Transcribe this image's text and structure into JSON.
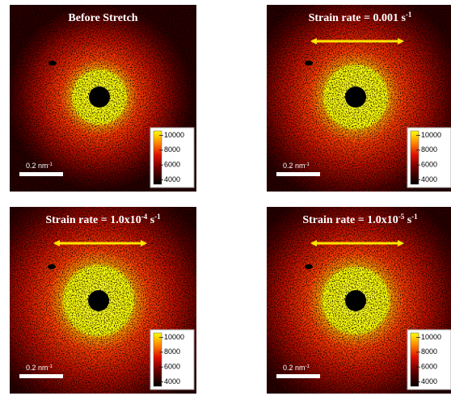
{
  "panels": [
    {
      "title": [
        "Before Stretch"
      ],
      "arrow": false
    },
    {
      "title": [
        "Strain rate = 0.001 s",
        "-1"
      ],
      "arrow": true
    },
    {
      "title": [
        "Strain rate = 1.0x10",
        "-4",
        " s",
        "-1"
      ],
      "arrow": true
    },
    {
      "title": [
        "Strain rate = 1.0x10",
        "-5",
        " s",
        "-1"
      ],
      "arrow": true
    }
  ],
  "scale_bar": [
    "0.2 nm",
    "-1"
  ],
  "colorbar": {
    "clim": [
      3400,
      10600
    ],
    "ticks": [
      10000,
      8000,
      6000,
      4000
    ]
  }
}
